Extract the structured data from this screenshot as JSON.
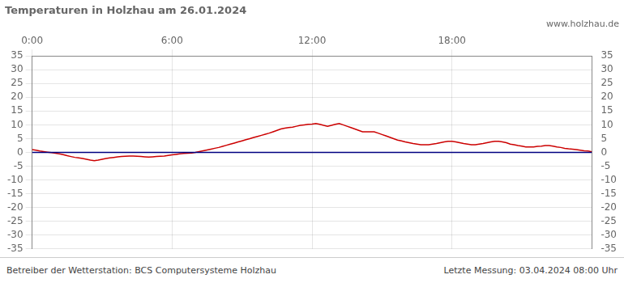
{
  "chart_data": {
    "type": "line",
    "title": "Temperaturen in Holzhau am 26.01.2024",
    "subtitle": "www.holzhau.de",
    "annotations": [
      "Betreiber der Wetterstation: BCS Computersysteme Holzhau",
      "Letzte Messung: 03.04.2024 08:00 Uhr"
    ],
    "x": [
      0,
      2,
      4,
      6,
      8,
      10,
      12,
      14,
      16,
      18,
      20,
      22,
      24,
      26,
      28,
      30,
      32,
      34,
      36,
      38,
      40,
      42,
      44,
      46,
      48,
      50,
      52,
      54,
      56,
      58,
      60,
      62,
      64,
      66,
      68,
      70,
      72,
      74,
      76,
      78,
      80,
      82,
      84,
      86,
      88,
      90,
      92,
      94,
      96,
      98,
      100,
      102,
      104,
      106,
      108,
      110,
      112,
      114,
      116,
      118,
      120,
      122,
      124,
      126,
      128,
      130,
      132,
      134,
      136,
      138,
      140,
      142,
      144,
      146,
      148,
      150,
      152,
      154,
      156,
      158,
      160,
      162,
      164,
      166,
      168,
      170,
      172,
      174,
      176,
      178,
      180,
      182,
      184,
      186,
      188,
      190,
      192,
      194,
      196,
      198,
      200,
      202,
      204,
      206,
      208,
      210,
      212,
      214,
      216,
      218,
      220,
      222,
      224,
      226,
      228,
      230,
      232,
      234,
      236,
      238,
      240,
      242,
      244,
      246,
      248,
      250,
      252,
      254,
      256,
      258,
      260,
      262,
      264,
      266,
      268,
      270,
      272,
      274,
      276,
      278,
      280,
      282,
      284,
      286,
      288
    ],
    "series": [
      {
        "color": "#000080",
        "values": [
          0.0,
          0.0,
          0.0,
          0.0,
          0.0,
          0.0,
          0.0,
          0.0,
          0.0,
          0.0,
          0.0,
          0.0,
          0.0,
          0.0,
          0.0,
          0.0,
          0.0,
          0.0,
          0.0,
          0.0,
          0.0,
          0.0,
          0.0,
          0.0,
          0.0,
          0.0,
          0.0,
          0.0,
          0.0,
          0.0,
          0.0,
          0.0,
          0.0,
          0.0,
          0.0,
          0.0,
          0.0,
          0.0,
          0.0,
          0.0,
          0.0,
          0.0,
          0.0,
          0.0,
          0.0,
          0.0,
          0.0,
          0.0,
          0.0,
          0.0,
          0.0,
          0.0,
          0.0,
          0.0,
          0.0,
          0.0,
          0.0,
          0.0,
          0.0,
          0.0,
          0.0,
          0.0,
          0.0,
          0.0,
          0.0,
          0.0,
          0.0,
          0.0,
          0.0,
          0.0,
          0.0,
          0.0,
          0.0,
          0.0,
          0.0,
          0.0,
          0.0,
          0.0,
          0.0,
          0.0,
          0.0,
          0.0,
          0.0,
          0.0,
          0.0,
          0.0,
          0.0,
          0.0,
          0.0,
          0.0,
          0.0,
          0.0,
          0.0,
          0.0,
          0.0,
          0.0,
          0.0,
          0.0,
          0.0,
          0.0,
          0.0,
          0.0,
          0.0,
          0.0,
          0.0,
          0.0,
          0.0,
          0.0,
          0.0,
          0.0,
          0.0,
          0.0,
          0.0,
          0.0,
          0.0,
          0.0,
          0.0,
          0.0,
          0.0,
          0.0,
          0.0,
          0.0,
          0.0,
          0.0,
          0.0,
          0.0,
          0.0,
          0.0,
          0.0,
          0.0,
          0.0,
          0.0,
          0.0,
          0.0,
          0.0,
          0.0,
          0.0,
          0.0,
          0.0,
          0.0,
          0.0,
          0.0,
          0.0,
          0.0,
          0.0
        ]
      },
      {
        "color": "#cc0000",
        "values": [
          1.0,
          0.8,
          0.5,
          0.3,
          0.1,
          -0.1,
          -0.3,
          -0.5,
          -0.8,
          -1.2,
          -1.5,
          -1.8,
          -2.0,
          -2.2,
          -2.5,
          -2.8,
          -3.0,
          -2.8,
          -2.5,
          -2.2,
          -2.0,
          -1.8,
          -1.6,
          -1.5,
          -1.4,
          -1.3,
          -1.3,
          -1.4,
          -1.5,
          -1.6,
          -1.7,
          -1.6,
          -1.5,
          -1.4,
          -1.3,
          -1.1,
          -0.9,
          -0.7,
          -0.5,
          -0.4,
          -0.3,
          -0.2,
          0.0,
          0.3,
          0.6,
          0.9,
          1.2,
          1.5,
          1.8,
          2.2,
          2.6,
          3.0,
          3.4,
          3.8,
          4.2,
          4.6,
          5.0,
          5.4,
          5.8,
          6.2,
          6.6,
          7.0,
          7.5,
          8.0,
          8.5,
          8.8,
          9.0,
          9.2,
          9.5,
          9.8,
          10.0,
          10.2,
          10.3,
          10.5,
          10.2,
          9.8,
          9.5,
          9.8,
          10.2,
          10.5,
          10.0,
          9.5,
          9.0,
          8.5,
          8.0,
          7.5,
          7.5,
          7.5,
          7.5,
          7.0,
          6.5,
          6.0,
          5.5,
          5.0,
          4.5,
          4.2,
          3.8,
          3.5,
          3.2,
          3.0,
          2.8,
          2.8,
          2.8,
          3.0,
          3.2,
          3.5,
          3.8,
          4.0,
          4.0,
          3.8,
          3.5,
          3.2,
          3.0,
          2.8,
          2.8,
          3.0,
          3.2,
          3.5,
          3.8,
          4.0,
          4.0,
          3.8,
          3.5,
          3.0,
          2.8,
          2.5,
          2.3,
          2.0,
          2.0,
          2.0,
          2.2,
          2.3,
          2.5,
          2.5,
          2.3,
          2.0,
          1.8,
          1.5,
          1.3,
          1.2,
          1.0,
          0.8,
          0.6,
          0.5,
          0.2
        ]
      }
    ],
    "xlim": [
      0,
      288
    ],
    "xticks": [
      {
        "value": 0,
        "label": "0:00"
      },
      {
        "value": 72,
        "label": "6:00"
      },
      {
        "value": 144,
        "label": "12:00"
      },
      {
        "value": 216,
        "label": "18:00"
      }
    ],
    "ylim": [
      -35,
      35
    ],
    "yticks": [
      -35,
      -30,
      -25,
      -20,
      -15,
      -10,
      -5,
      0,
      5,
      10,
      15,
      20,
      25,
      30,
      35
    ],
    "y2lim": [
      -35,
      35
    ],
    "y2ticks": [
      -35,
      -30,
      -25,
      -20,
      -15,
      -10,
      -5,
      0,
      5,
      10,
      15,
      20,
      25,
      30,
      35
    ],
    "grid": true
  }
}
